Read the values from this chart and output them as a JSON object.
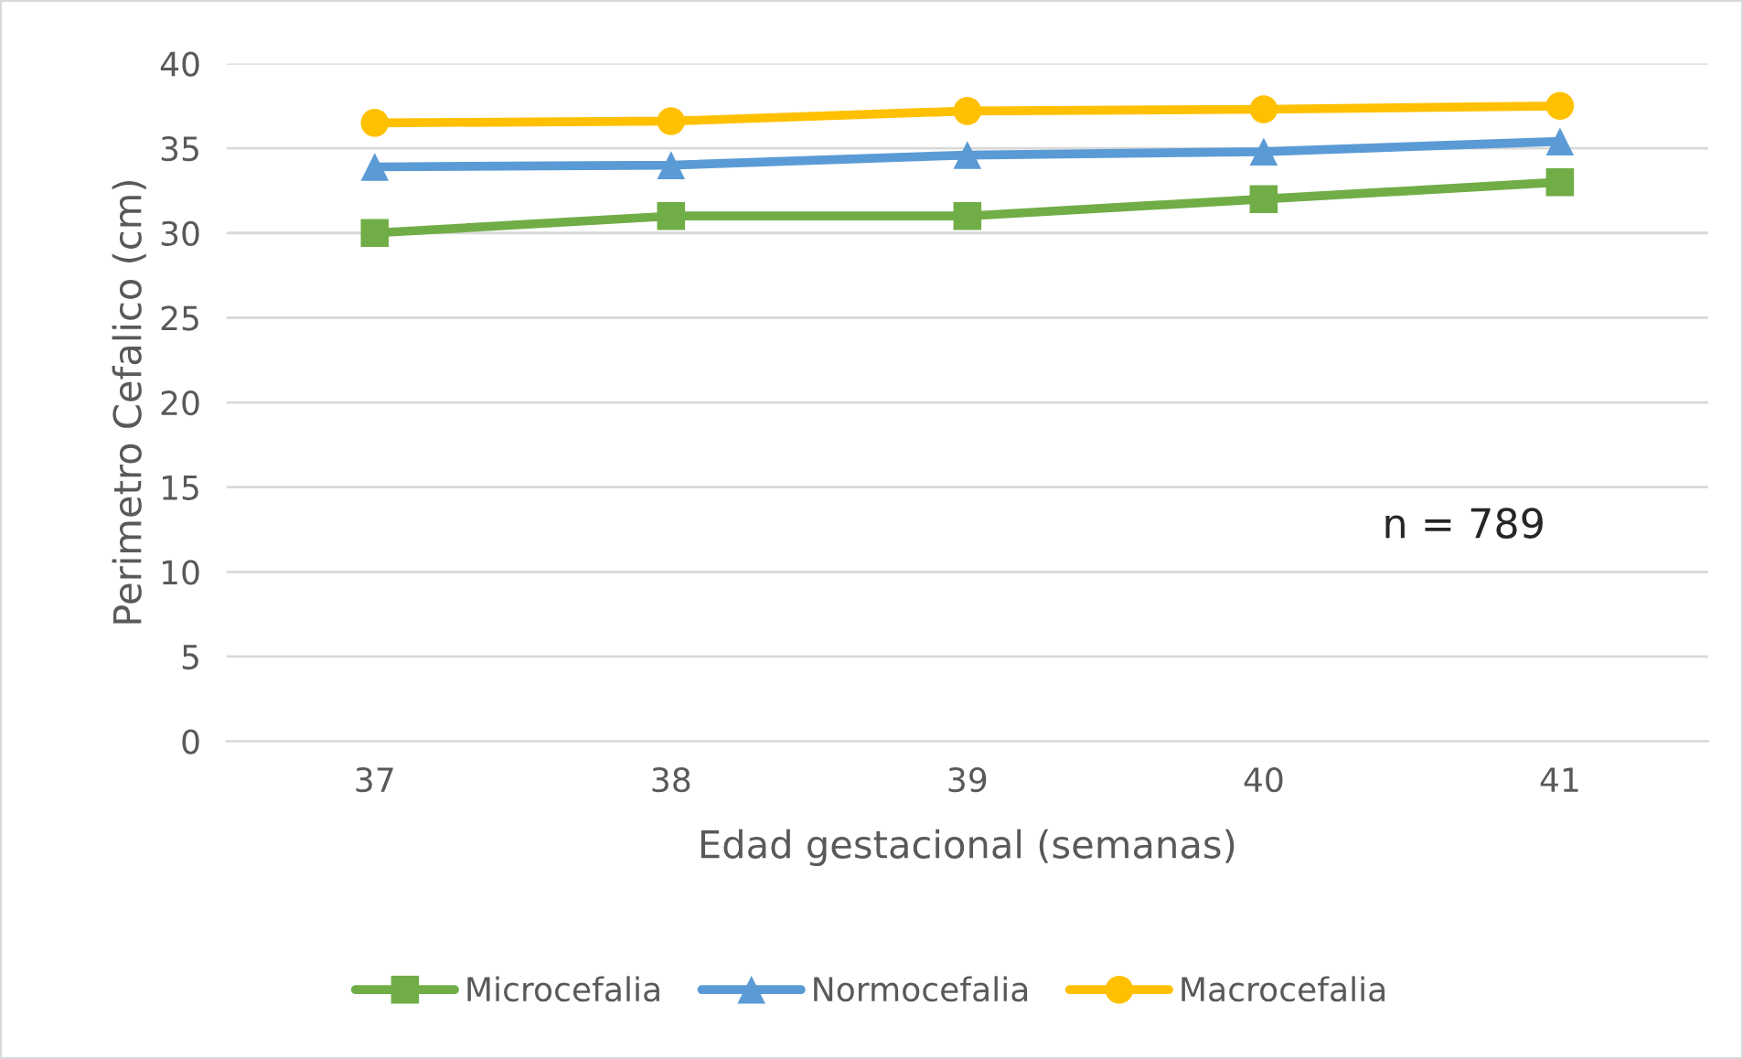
{
  "chart_data": {
    "type": "line",
    "xlabel": "Edad gestacional (semanas)",
    "ylabel": "Perimetro Cefalico (cm)",
    "categories": [
      "37",
      "38",
      "39",
      "40",
      "41"
    ],
    "series": [
      {
        "name": "Microcefalia",
        "color": "#70ad47",
        "marker": "square",
        "values": [
          30,
          31,
          31,
          32,
          33
        ]
      },
      {
        "name": "Normocefalia",
        "color": "#5b9bd5",
        "marker": "triangle",
        "values": [
          33.9,
          34.0,
          34.6,
          34.8,
          35.4
        ]
      },
      {
        "name": "Macrocefalia",
        "color": "#ffc000",
        "marker": "circle",
        "values": [
          36.5,
          36.6,
          37.2,
          37.3,
          37.5
        ]
      }
    ],
    "ylim": [
      0,
      40
    ],
    "yticks": [
      0,
      5,
      10,
      15,
      20,
      25,
      30,
      35,
      40
    ],
    "grid": "y",
    "legend": "bottom",
    "annotations": [
      "n = 789"
    ]
  }
}
